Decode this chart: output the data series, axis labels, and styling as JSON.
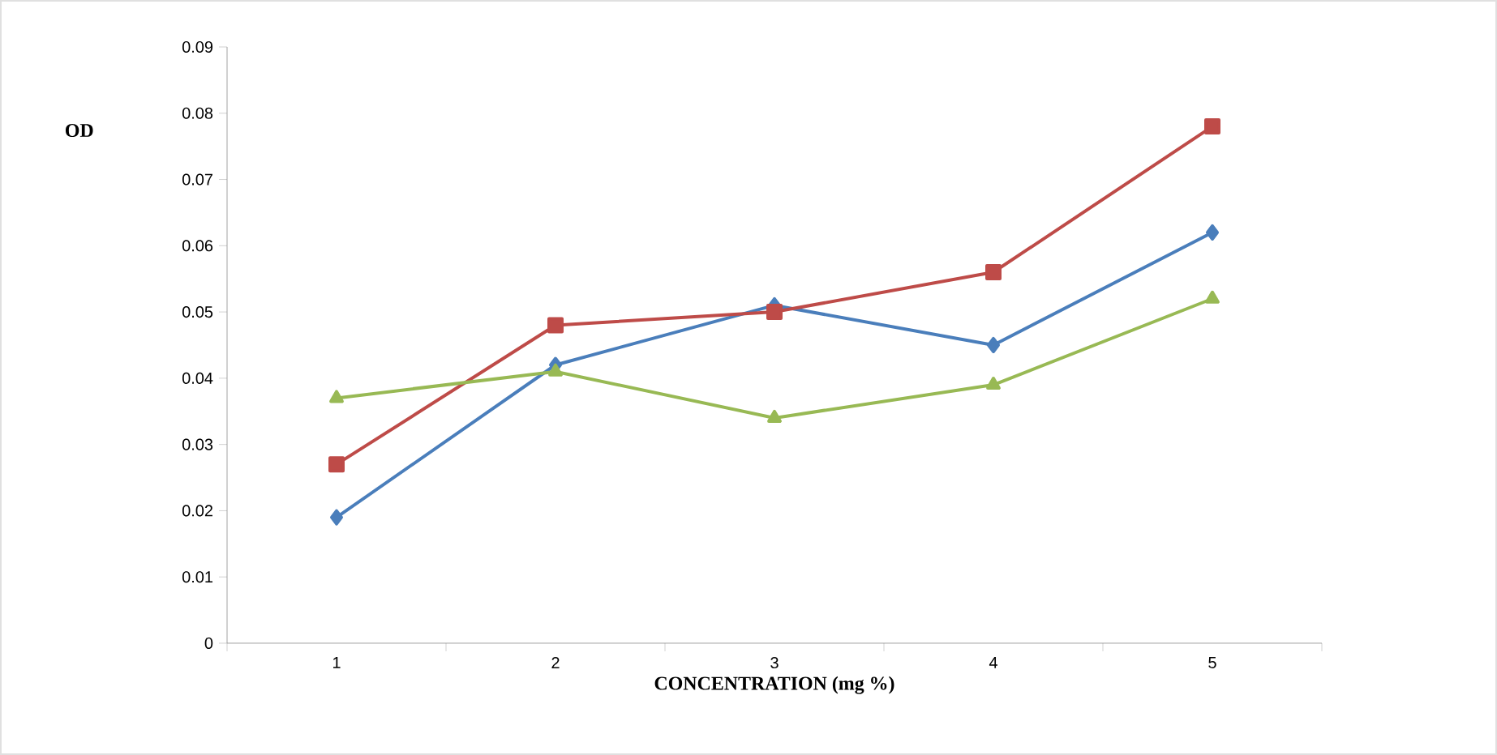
{
  "chart_data": {
    "type": "line",
    "xlabel": "CONCENTRATION  (mg %)",
    "ylabel": "OD",
    "categories": [
      "1",
      "2",
      "3",
      "4",
      "5"
    ],
    "series": [
      {
        "color": "#4a7ebb",
        "marker": "diamond",
        "values": [
          0.019,
          0.042,
          0.051,
          0.045,
          0.062
        ]
      },
      {
        "color": "#be4b48",
        "marker": "square",
        "values": [
          0.027,
          0.048,
          0.05,
          0.056,
          0.078
        ]
      },
      {
        "color": "#98b954",
        "marker": "triangle",
        "values": [
          0.037,
          0.041,
          0.034,
          0.039,
          0.052
        ]
      }
    ],
    "ylim": [
      0,
      0.09
    ],
    "yticks": [
      0,
      0.01,
      0.02,
      0.03,
      0.04,
      0.05,
      0.06,
      0.07,
      0.08,
      0.09
    ],
    "grid": false,
    "line_style": "solid"
  }
}
